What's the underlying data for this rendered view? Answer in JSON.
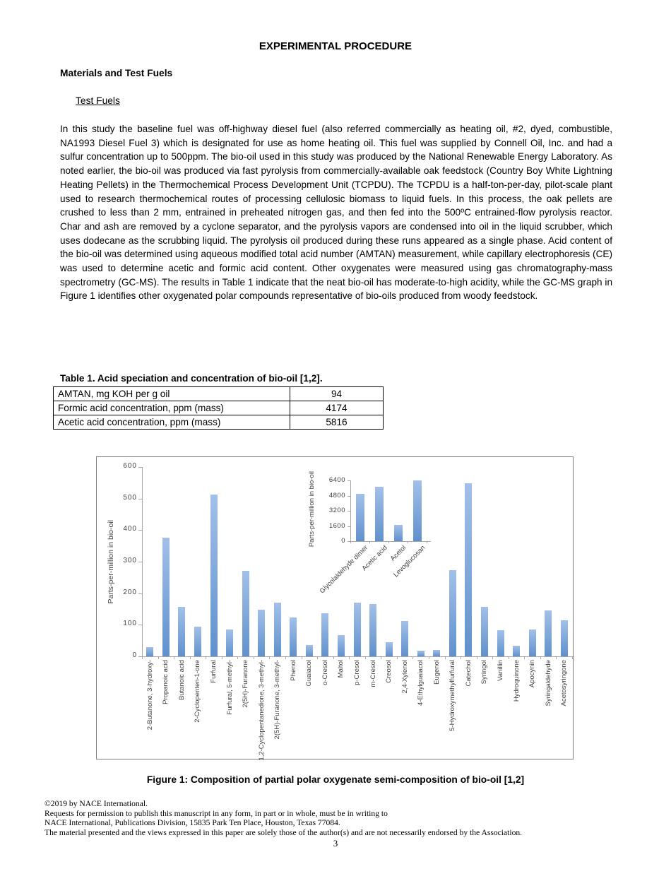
{
  "document": {
    "title": "EXPERIMENTAL PROCEDURE",
    "section_heading": "Materials and Test Fuels",
    "subsection_heading": "Test Fuels",
    "paragraph": "In this study the baseline fuel was off-highway diesel fuel (also referred commercially as heating oil, #2, dyed, combustible, NA1993 Diesel Fuel 3) which is designated for use as home heating oil.  This fuel was supplied by Connell Oil, Inc. and had a sulfur concentration up to 500ppm.  The bio-oil used in this study was produced by the National Renewable Energy Laboratory.  As noted earlier, the bio-oil was produced via fast pyrolysis from commercially-available oak feedstock (Country Boy White Lightning Heating Pellets) in the Thermochemical Process Development Unit (TCPDU). The TCPDU is a half-ton-per-day, pilot-scale plant used to research thermochemical routes of processing cellulosic biomass to liquid fuels.  In this process, the oak pellets are crushed to less than 2 mm, entrained in preheated nitrogen gas, and then fed into the 500ºC entrained-flow pyrolysis reactor.  Char and ash are removed by a cyclone separator, and the pyrolysis vapors are condensed into oil in the liquid scrubber, which uses dodecane as the scrubbing liquid.  The pyrolysis oil produced during these runs appeared as a single phase.  Acid content of the bio-oil was determined using aqueous modified total acid number (AMTAN) measurement, while capillary electrophoresis (CE) was used to determine acetic and formic acid content.  Other oxygenates were measured using gas chromatography-mass spectrometry (GC-MS).  The results in Table 1 indicate that the neat bio-oil has moderate-to-high acidity, while the GC-MS graph in Figure 1 identifies other oxygenated polar compounds representative of bio-oils produced from woody feedstock.",
    "page_number": "3"
  },
  "table1": {
    "caption": "Table 1. Acid speciation and concentration of bio-oil [1,2].",
    "rows": [
      {
        "label": "AMTAN, mg KOH per g oil",
        "value": "94"
      },
      {
        "label": "Formic acid concentration, ppm (mass)",
        "value": "4174"
      },
      {
        "label": "Acetic acid concentration, ppm (mass)",
        "value": "5816"
      }
    ]
  },
  "figure1": {
    "caption": "Figure 1:  Composition of partial polar oxygenate semi-composition of bio-oil [1,2]"
  },
  "chart_data": [
    {
      "type": "bar",
      "role": "main",
      "title": "",
      "xlabel": "",
      "ylabel": "Parts-per-million in bio-oil",
      "ylim": [
        0,
        600
      ],
      "yticks": [
        0,
        100,
        200,
        300,
        400,
        500,
        600
      ],
      "grid": false,
      "legend": false,
      "colors": {
        "bar_top": "#a2c0e9",
        "bar_bottom": "#6091cd",
        "axis": "#a6a6a6",
        "text": "#404040"
      },
      "categories": [
        "2-Butanone, 3-hydroxy-",
        "Propanoic acid",
        "Butanoic acid",
        "2-Cyclopenten-1-one",
        "Furfural",
        "Furfural, 5-methyl-",
        "2(5H)-Furanone",
        "1,2-Cyclopentanedione, 3-methyl-",
        "2(5H)-Furanone, 3-methyl-",
        "Phenol",
        "Guaiacol",
        "o-Cresol",
        "Maltol",
        "p-Cresol",
        "m-Cresol",
        "Creosol",
        "2,4-Xylenol",
        "4-Ethylguaiacol",
        "Eugenol",
        "5-Hydroxymethylfurfural",
        "Catechol",
        "Syringol",
        "Vanillin",
        "Hydroquinone",
        "Apocynin",
        "Syringaldehyde",
        "Acetosyringone"
      ],
      "values": [
        29,
        377,
        156,
        94,
        512,
        85,
        270,
        147,
        171,
        123,
        35,
        137,
        67,
        170,
        165,
        45,
        113,
        18,
        21,
        273,
        549,
        157,
        82,
        33,
        84,
        146,
        115
      ]
    },
    {
      "type": "bar",
      "role": "inset",
      "title": "",
      "xlabel": "",
      "ylabel": "Parts-per-million in bio-oil",
      "ylim": [
        0,
        6400
      ],
      "yticks": [
        0,
        1600,
        3200,
        4800,
        6400
      ],
      "grid": false,
      "legend": false,
      "categories": [
        "Glycolaldehyde dimer",
        "Acetic acid",
        "Acetol",
        "Levoglucosan"
      ],
      "values": [
        4950,
        5700,
        1720,
        6380
      ]
    }
  ],
  "footer": {
    "lines": [
      "©2019 by NACE International.",
      "Requests for permission to publish this manuscript in any form, in part or in whole, must be in writing to",
      "NACE International, Publications Division, 15835 Park Ten Place, Houston, Texas 77084.",
      "The material presented and the views expressed in this paper are solely those of the author(s) and are not necessarily endorsed by the Association."
    ]
  }
}
